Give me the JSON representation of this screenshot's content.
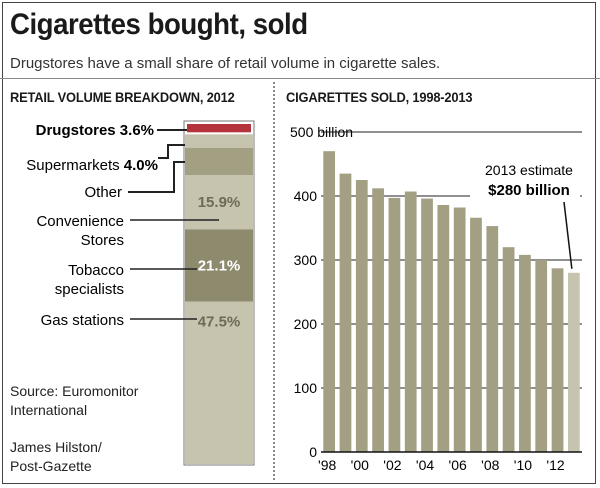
{
  "header": {
    "title": "Cigarettes bought, sold",
    "subtitle": "Drugstores have a small share of retail volume in cigarette sales."
  },
  "colors": {
    "bar": "#a39f82",
    "bar_estimate": "#c6c3ae",
    "drugstores": "#b5333b",
    "seg_light": "#c6c3ae",
    "seg_dark": "#a39f82",
    "seg_mid": "#8e8a6d",
    "grid": "#222222"
  },
  "credits": {
    "source": "Source: Euromonitor International",
    "source_line1": "Source: Euromonitor",
    "source_line2": "International",
    "byline_line1": "James Hilston/",
    "byline_line2": "Post-Gazette"
  },
  "chart_data": [
    {
      "type": "bar",
      "title": "RETAIL VOLUME BREAKDOWN, 2012",
      "stacked": true,
      "segments": [
        {
          "name": "Drugstores",
          "value": 3.6,
          "label": "3.6%",
          "color": "#b5333b"
        },
        {
          "name": "Supermarkets",
          "value": 4.0,
          "label": "4.0%",
          "color": "#c6c3ae"
        },
        {
          "name": "Other",
          "value": 7.9,
          "label": "",
          "color": "#a39f82"
        },
        {
          "name": "Convenience Stores",
          "value": 15.9,
          "label": "15.9%",
          "color": "#c6c3ae"
        },
        {
          "name": "Tobacco specialists",
          "value": 21.1,
          "label": "21.1%",
          "color": "#8e8a6d"
        },
        {
          "name": "Gas stations",
          "value": 47.5,
          "label": "47.5%",
          "color": "#c6c3ae"
        }
      ],
      "callouts": [
        {
          "text": "Drugstores",
          "value_text": "3.6%"
        },
        {
          "text": "Supermarkets",
          "value_text": "4.0%"
        },
        {
          "text": "Other",
          "value_text": ""
        },
        {
          "text": "Convenience",
          "text2": "Stores",
          "value_text": ""
        },
        {
          "text": "Tobacco",
          "text2": "specialists",
          "value_text": ""
        },
        {
          "text": "Gas stations",
          "value_text": ""
        }
      ]
    },
    {
      "type": "bar",
      "title": "CIGARETTES SOLD, 1998-2013",
      "x": [
        1998,
        1999,
        2000,
        2001,
        2002,
        2003,
        2004,
        2005,
        2006,
        2007,
        2008,
        2009,
        2010,
        2011,
        2012,
        2013
      ],
      "values": [
        470,
        435,
        425,
        412,
        397,
        407,
        396,
        386,
        382,
        366,
        353,
        320,
        308,
        300,
        287,
        280
      ],
      "ylim": [
        0,
        500
      ],
      "yticks": [
        0,
        100,
        200,
        300,
        400,
        500
      ],
      "ytick_labels": [
        "0",
        "100",
        "200",
        "300",
        "400",
        "500 billion"
      ],
      "xtick_labels": [
        "'98",
        "'00",
        "'02",
        "'04",
        "'06",
        "'08",
        "'10",
        "'12"
      ],
      "grid": true,
      "annotation": {
        "line1": "2013 estimate",
        "line2": "$280 billion"
      }
    }
  ]
}
